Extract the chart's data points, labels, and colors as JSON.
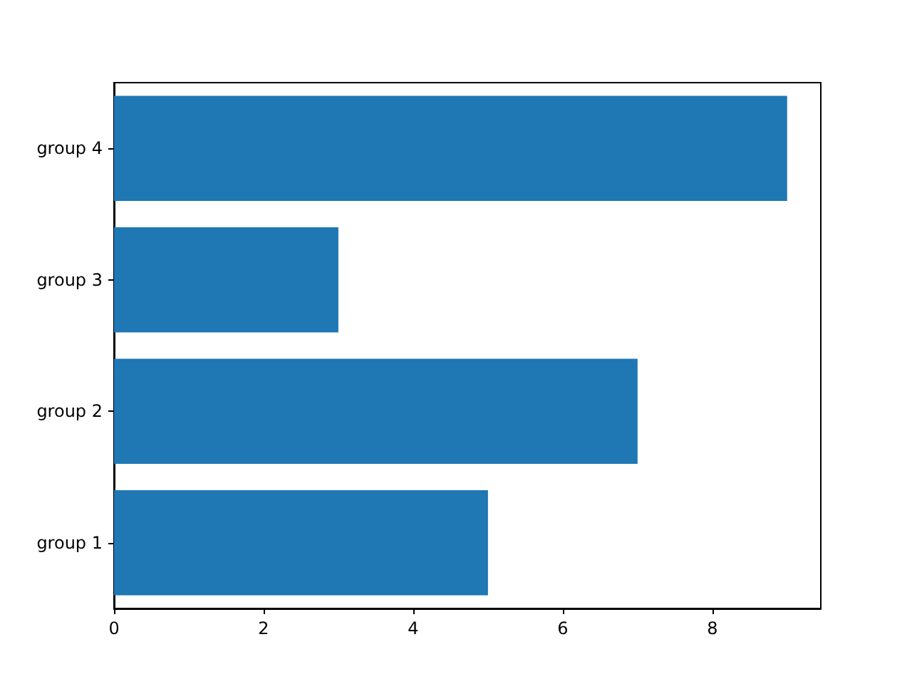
{
  "chart_data": {
    "type": "bar",
    "orientation": "horizontal",
    "categories": [
      "group 4",
      "group 3",
      "group 2",
      "group 1"
    ],
    "values": [
      9,
      3,
      7,
      5
    ],
    "color": "#1f77b4",
    "xlim": [
      0,
      9.45
    ],
    "xticks": [
      0,
      2,
      4,
      6,
      8
    ]
  }
}
